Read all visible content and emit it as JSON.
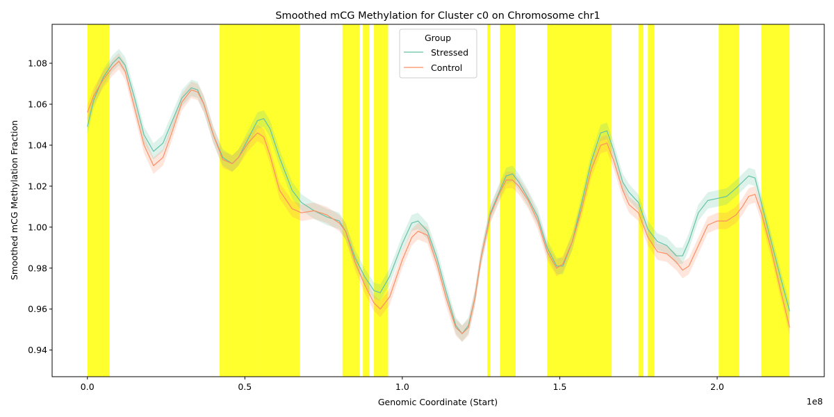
{
  "chart_data": {
    "type": "line",
    "title": "Smoothed mCG Methylation for Cluster c0 on Chromosome chr1",
    "xlabel": "Genomic Coordinate (Start)",
    "ylabel": "Smoothed mCG Methylation Fraction",
    "x_offset_label": "1e8",
    "x_units": "1e8",
    "xlim": [
      -0.112,
      2.34
    ],
    "ylim": [
      0.927,
      1.099
    ],
    "x_ticks": [
      0.0,
      0.5,
      1.0,
      1.5,
      2.0
    ],
    "x_tick_labels": [
      "0.0",
      "0.5",
      "1.0",
      "1.5",
      "2.0"
    ],
    "y_ticks": [
      0.94,
      0.96,
      0.98,
      1.0,
      1.02,
      1.04,
      1.06,
      1.08
    ],
    "y_tick_labels": [
      "0.94",
      "0.96",
      "0.98",
      "1.00",
      "1.02",
      "1.04",
      "1.06",
      "1.08"
    ],
    "grid": false,
    "legend": {
      "title": "Group",
      "placement": "top-center"
    },
    "highlight_color": "#ffff00",
    "highlight_regions": [
      [
        0.0,
        0.07
      ],
      [
        0.42,
        0.43
      ],
      [
        0.43,
        0.54
      ],
      [
        0.54,
        0.675
      ],
      [
        0.81,
        0.865
      ],
      [
        0.875,
        0.895
      ],
      [
        0.91,
        0.955
      ],
      [
        1.27,
        1.28
      ],
      [
        1.31,
        1.36
      ],
      [
        1.46,
        1.58
      ],
      [
        1.58,
        1.665
      ],
      [
        1.75,
        1.765
      ],
      [
        1.78,
        1.8
      ],
      [
        2.005,
        2.07
      ],
      [
        2.14,
        2.23
      ]
    ],
    "x": [
      0.0,
      0.02,
      0.05,
      0.08,
      0.1,
      0.12,
      0.15,
      0.18,
      0.21,
      0.24,
      0.27,
      0.3,
      0.33,
      0.35,
      0.37,
      0.4,
      0.43,
      0.46,
      0.48,
      0.51,
      0.54,
      0.56,
      0.58,
      0.61,
      0.65,
      0.68,
      0.72,
      0.76,
      0.8,
      0.82,
      0.85,
      0.88,
      0.91,
      0.93,
      0.96,
      1.0,
      1.03,
      1.05,
      1.08,
      1.11,
      1.14,
      1.17,
      1.19,
      1.21,
      1.23,
      1.25,
      1.28,
      1.31,
      1.33,
      1.35,
      1.37,
      1.4,
      1.43,
      1.46,
      1.49,
      1.51,
      1.54,
      1.57,
      1.6,
      1.63,
      1.65,
      1.67,
      1.7,
      1.72,
      1.75,
      1.78,
      1.81,
      1.84,
      1.87,
      1.89,
      1.91,
      1.94,
      1.97,
      2.0,
      2.03,
      2.06,
      2.08,
      2.1,
      2.12,
      2.14,
      2.17,
      2.2,
      2.23
    ],
    "series": [
      {
        "name": "Stressed",
        "color": "#66c2a5",
        "values": [
          1.049,
          1.062,
          1.073,
          1.08,
          1.083,
          1.079,
          1.063,
          1.045,
          1.037,
          1.041,
          1.052,
          1.063,
          1.068,
          1.067,
          1.06,
          1.045,
          1.034,
          1.031,
          1.034,
          1.043,
          1.052,
          1.053,
          1.048,
          1.034,
          1.018,
          1.012,
          1.008,
          1.005,
          1.003,
          0.998,
          0.985,
          0.976,
          0.969,
          0.968,
          0.976,
          0.992,
          1.002,
          1.003,
          0.998,
          0.985,
          0.968,
          0.952,
          0.948,
          0.952,
          0.965,
          0.985,
          1.007,
          1.018,
          1.025,
          1.026,
          1.022,
          1.014,
          1.005,
          0.99,
          0.981,
          0.981,
          0.993,
          1.012,
          1.032,
          1.046,
          1.047,
          1.038,
          1.022,
          1.017,
          1.012,
          0.999,
          0.993,
          0.991,
          0.986,
          0.986,
          0.993,
          1.007,
          1.013,
          1.014,
          1.015,
          1.019,
          1.022,
          1.025,
          1.024,
          1.012,
          0.994,
          0.976,
          0.959
        ]
      },
      {
        "name": "Control",
        "color": "#fc8d62",
        "values": [
          1.056,
          1.064,
          1.072,
          1.078,
          1.081,
          1.076,
          1.058,
          1.04,
          1.03,
          1.034,
          1.047,
          1.061,
          1.067,
          1.066,
          1.06,
          1.045,
          1.033,
          1.031,
          1.034,
          1.041,
          1.046,
          1.044,
          1.035,
          1.018,
          1.009,
          1.007,
          1.008,
          1.006,
          1.002,
          0.998,
          0.983,
          0.972,
          0.963,
          0.96,
          0.966,
          0.984,
          0.995,
          0.998,
          0.996,
          0.982,
          0.965,
          0.951,
          0.948,
          0.951,
          0.965,
          0.985,
          1.006,
          1.017,
          1.023,
          1.023,
          1.02,
          1.013,
          1.003,
          0.988,
          0.98,
          0.982,
          0.993,
          1.009,
          1.028,
          1.04,
          1.041,
          1.033,
          1.018,
          1.011,
          1.007,
          0.995,
          0.988,
          0.987,
          0.983,
          0.979,
          0.981,
          0.991,
          1.001,
          1.003,
          1.003,
          1.006,
          1.01,
          1.015,
          1.016,
          1.007,
          0.99,
          0.97,
          0.951
        ]
      }
    ]
  }
}
